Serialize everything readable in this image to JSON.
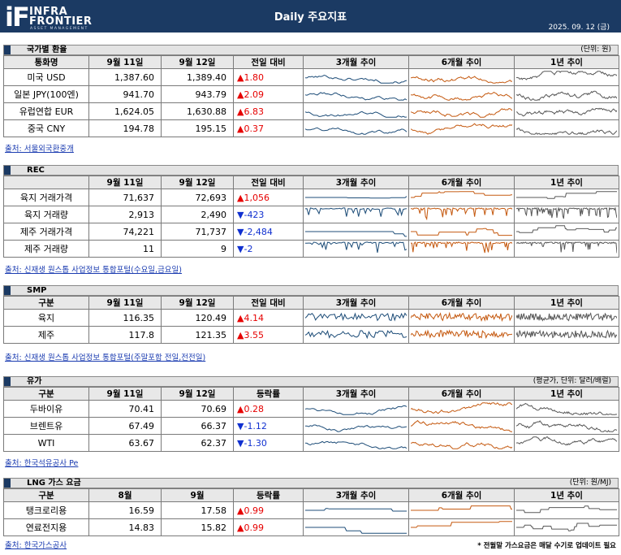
{
  "header": {
    "logo_if": "iF",
    "logo_line1": "INFRA",
    "logo_line2": "FRONTIER",
    "logo_sub": "ASSET MANAGEMENT",
    "title": "Daily 주요지표",
    "date": "2025. 09. 12 (금)"
  },
  "colors": {
    "navy": "#1b3a63",
    "up": "#e60000",
    "down": "#1030d0",
    "spark_3m": "#1f4e79",
    "spark_6m": "#c55a11",
    "spark_1y": "#595959"
  },
  "sections": [
    {
      "title": "국가별 환율",
      "unit": "(단위: 원)",
      "headers": [
        "통화명",
        "9월 11일",
        "9월 12일",
        "전일 대비",
        "3개월 추이",
        "6개월 추이",
        "1년 추이"
      ],
      "rows": [
        {
          "name": "미국 USD",
          "prev": "1,387.60",
          "curr": "1,389.40",
          "change": "1.80",
          "dir": "up"
        },
        {
          "name": "일본 JPY(100엔)",
          "prev": "941.70",
          "curr": "943.79",
          "change": "2.09",
          "dir": "up"
        },
        {
          "name": "유럽연합 EUR",
          "prev": "1,624.05",
          "curr": "1,630.88",
          "change": "6.83",
          "dir": "up"
        },
        {
          "name": "중국 CNY",
          "prev": "194.78",
          "curr": "195.15",
          "change": "0.37",
          "dir": "up"
        }
      ],
      "source": "출처: 서울외국환중개"
    },
    {
      "title": "REC",
      "unit": "",
      "headers": [
        "",
        "9월 11일",
        "9월 12일",
        "전일 대비",
        "3개월 추이",
        "6개월 추이",
        "1년 추이"
      ],
      "rows": [
        {
          "name": "육지 거래가격",
          "prev": "71,637",
          "curr": "72,693",
          "change": "1,056",
          "dir": "up"
        },
        {
          "name": "육지 거래량",
          "prev": "2,913",
          "curr": "2,490",
          "change": "-423",
          "dir": "down"
        },
        {
          "name": "제주 거래가격",
          "prev": "74,221",
          "curr": "71,737",
          "change": "-2,484",
          "dir": "down"
        },
        {
          "name": "제주 거래량",
          "prev": "11",
          "curr": "9",
          "change": "-2",
          "dir": "down"
        }
      ],
      "source": "출처: 신재생 원스톱 사업정보 통합포털(수요일,금요일)"
    },
    {
      "title": "SMP",
      "unit": "",
      "headers": [
        "구분",
        "9월 11일",
        "9월 12일",
        "전일 대비",
        "3개월 추이",
        "6개월 추이",
        "1년 추이"
      ],
      "rows": [
        {
          "name": "육지",
          "prev": "116.35",
          "curr": "120.49",
          "change": "4.14",
          "dir": "up"
        },
        {
          "name": "제주",
          "prev": "117.8",
          "curr": "121.35",
          "change": "3.55",
          "dir": "up"
        }
      ],
      "source": "출처: 신재생 원스톱 사업정보 통합포털(주말포함 전일,전전일)"
    },
    {
      "title": "유가",
      "unit": "(평균가, 단위: 달러/배럴)",
      "headers": [
        "구분",
        "9월 11일",
        "9월 12일",
        "등락률",
        "3개월 추이",
        "6개월 추이",
        "1년 추이"
      ],
      "rows": [
        {
          "name": "두바이유",
          "prev": "70.41",
          "curr": "70.69",
          "change": "0.28",
          "dir": "up"
        },
        {
          "name": "브렌트유",
          "prev": "67.49",
          "curr": "66.37",
          "change": "-1.12",
          "dir": "down"
        },
        {
          "name": "WTI",
          "prev": "63.67",
          "curr": "62.37",
          "change": "-1.30",
          "dir": "down"
        }
      ],
      "source": "출처: 한국석유공사 Pe"
    },
    {
      "title": "LNG 가스 요금",
      "unit": "(단위: 원/MJ)",
      "headers": [
        "구분",
        "8월",
        "9월",
        "등락률",
        "3개월 추이",
        "6개월 추이",
        "1년 추이"
      ],
      "rows": [
        {
          "name": "탱크로리용",
          "prev": "16.59",
          "curr": "17.58",
          "change": "0.99",
          "dir": "up"
        },
        {
          "name": "연료전지용",
          "prev": "14.83",
          "curr": "15.82",
          "change": "0.99",
          "dir": "up"
        }
      ],
      "source": "출처: 한국가스공사"
    }
  ],
  "footnote": "* 전월말 가스요금은 매달 수기로 업데이트 필요"
}
